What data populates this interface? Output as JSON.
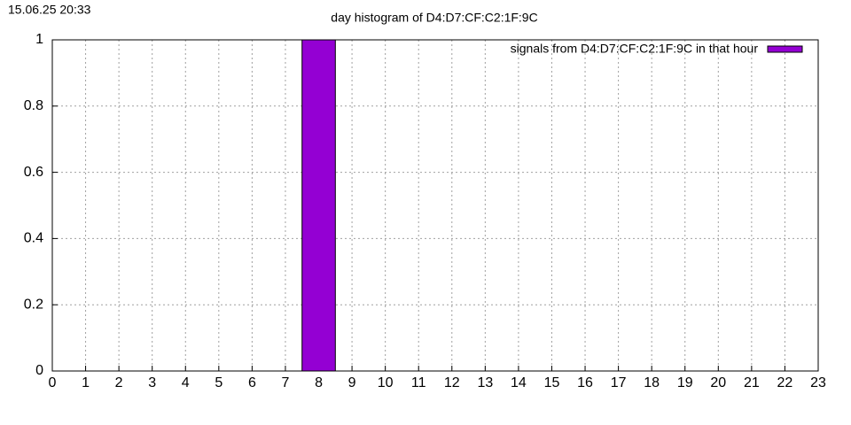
{
  "timestamp": "15.06.25 20:33",
  "chart_data": {
    "type": "bar",
    "title": "day histogram of D4:D7:CF:C2:1F:9C",
    "x": [
      0,
      1,
      2,
      3,
      4,
      5,
      6,
      7,
      8,
      9,
      10,
      11,
      12,
      13,
      14,
      15,
      16,
      17,
      18,
      19,
      20,
      21,
      22,
      23
    ],
    "series": [
      {
        "name": "signals from D4:D7:CF:C2:1F:9C in that hour",
        "color": "#9400d3",
        "values": [
          0,
          0,
          0,
          0,
          0,
          0,
          0,
          0,
          1,
          0,
          0,
          0,
          0,
          0,
          0,
          0,
          0,
          0,
          0,
          0,
          0,
          0,
          0,
          0
        ]
      }
    ],
    "xlim": [
      0,
      23
    ],
    "xticks": [
      0,
      1,
      2,
      3,
      4,
      5,
      6,
      7,
      8,
      9,
      10,
      11,
      12,
      13,
      14,
      15,
      16,
      17,
      18,
      19,
      20,
      21,
      22,
      23
    ],
    "ylim": [
      0,
      1
    ],
    "yticks": [
      0,
      0.2,
      0.4,
      0.6,
      0.8,
      1
    ],
    "grid": true,
    "legend_position": "top-right"
  }
}
